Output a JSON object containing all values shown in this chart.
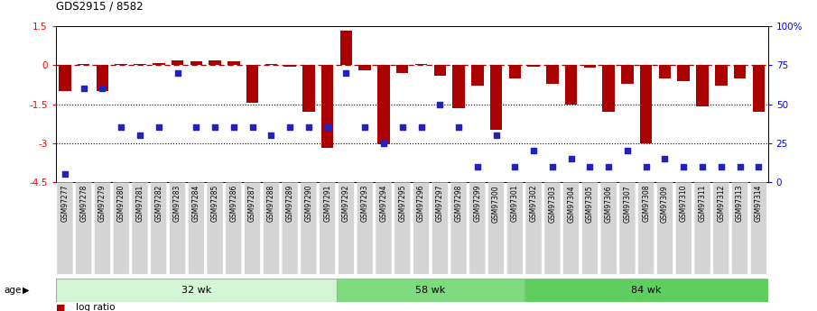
{
  "title": "GDS2915 / 8582",
  "samples": [
    "GSM97277",
    "GSM97278",
    "GSM97279",
    "GSM97280",
    "GSM97281",
    "GSM97282",
    "GSM97283",
    "GSM97284",
    "GSM97285",
    "GSM97286",
    "GSM97287",
    "GSM97288",
    "GSM97289",
    "GSM97290",
    "GSM97291",
    "GSM97292",
    "GSM97293",
    "GSM97294",
    "GSM97295",
    "GSM97296",
    "GSM97297",
    "GSM97298",
    "GSM97299",
    "GSM97300",
    "GSM97301",
    "GSM97302",
    "GSM97303",
    "GSM97304",
    "GSM97305",
    "GSM97306",
    "GSM97307",
    "GSM97308",
    "GSM97309",
    "GSM97310",
    "GSM97311",
    "GSM97312",
    "GSM97313",
    "GSM97314"
  ],
  "log_ratio": [
    -1.0,
    0.05,
    -1.0,
    0.05,
    0.05,
    0.1,
    0.2,
    0.15,
    0.2,
    0.15,
    -1.45,
    0.05,
    -0.05,
    -1.8,
    -3.2,
    1.35,
    -0.2,
    -3.05,
    -0.3,
    0.05,
    -0.4,
    -1.65,
    -0.8,
    -2.5,
    -0.5,
    -0.05,
    -0.7,
    -1.5,
    -0.1,
    -1.8,
    -0.7,
    -3.0,
    -0.5,
    -0.6,
    -1.6,
    -0.8,
    -0.5,
    -1.8
  ],
  "percentile": [
    5,
    60,
    60,
    35,
    30,
    35,
    70,
    35,
    35,
    35,
    35,
    30,
    35,
    35,
    35,
    70,
    35,
    25,
    35,
    35,
    50,
    35,
    10,
    30,
    10,
    20,
    10,
    15,
    10,
    10,
    20,
    10,
    15,
    10,
    10,
    10,
    10,
    10
  ],
  "groups": [
    {
      "label": "32 wk",
      "start": 0,
      "end": 15,
      "color": "#d4f5d4"
    },
    {
      "label": "58 wk",
      "start": 15,
      "end": 25,
      "color": "#7ddb7d"
    },
    {
      "label": "84 wk",
      "start": 25,
      "end": 38,
      "color": "#5ecf5e"
    }
  ],
  "ylim": [
    -4.5,
    1.5
  ],
  "yticks_left": [
    1.5,
    0,
    -1.5,
    -3,
    -4.5
  ],
  "ytick_labels_left": [
    "1.5",
    "0",
    "-1.5",
    "-3",
    "-4.5"
  ],
  "hline_dashed": 0,
  "hline_dotted": [
    -1.5,
    -3.0
  ],
  "bar_color": "#aa0000",
  "dot_color": "#2222bb",
  "y2_ticks_pct": [
    100,
    75,
    50,
    25,
    0
  ],
  "y2_labels": [
    "100%",
    "75",
    "50",
    "25",
    "0"
  ],
  "xtick_label_bg": "#d8d8d8",
  "plot_bg": "#ffffff"
}
